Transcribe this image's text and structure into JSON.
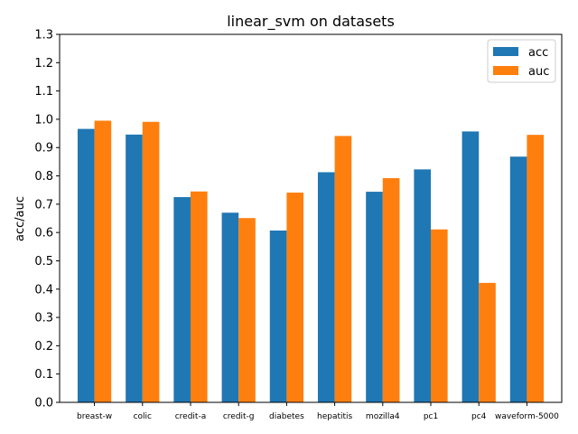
{
  "chart_data": {
    "type": "bar",
    "title": "linear_svm on datasets",
    "xlabel": "",
    "ylabel": "acc/auc",
    "ylim": [
      0,
      1.3
    ],
    "yticks": [
      "0.0",
      "0.1",
      "0.2",
      "0.3",
      "0.4",
      "0.5",
      "0.6",
      "0.7",
      "0.8",
      "0.9",
      "1.0",
      "1.1",
      "1.2",
      "1.3"
    ],
    "categories": [
      "breast-w",
      "colic",
      "credit-a",
      "credit-g",
      "diabetes",
      "hepatitis",
      "mozilla4",
      "pc1",
      "pc4",
      "waveform-5000"
    ],
    "series": [
      {
        "name": "acc",
        "color": "#1f77b4",
        "values": [
          0.966,
          0.946,
          0.725,
          0.67,
          0.607,
          0.813,
          0.744,
          0.823,
          0.957,
          0.868
        ]
      },
      {
        "name": "auc",
        "color": "#ff7f0e",
        "values": [
          0.995,
          0.991,
          0.745,
          0.651,
          0.741,
          0.941,
          0.792,
          0.611,
          0.422,
          0.945
        ]
      }
    ],
    "grid": false,
    "legend_position": "top-right"
  }
}
